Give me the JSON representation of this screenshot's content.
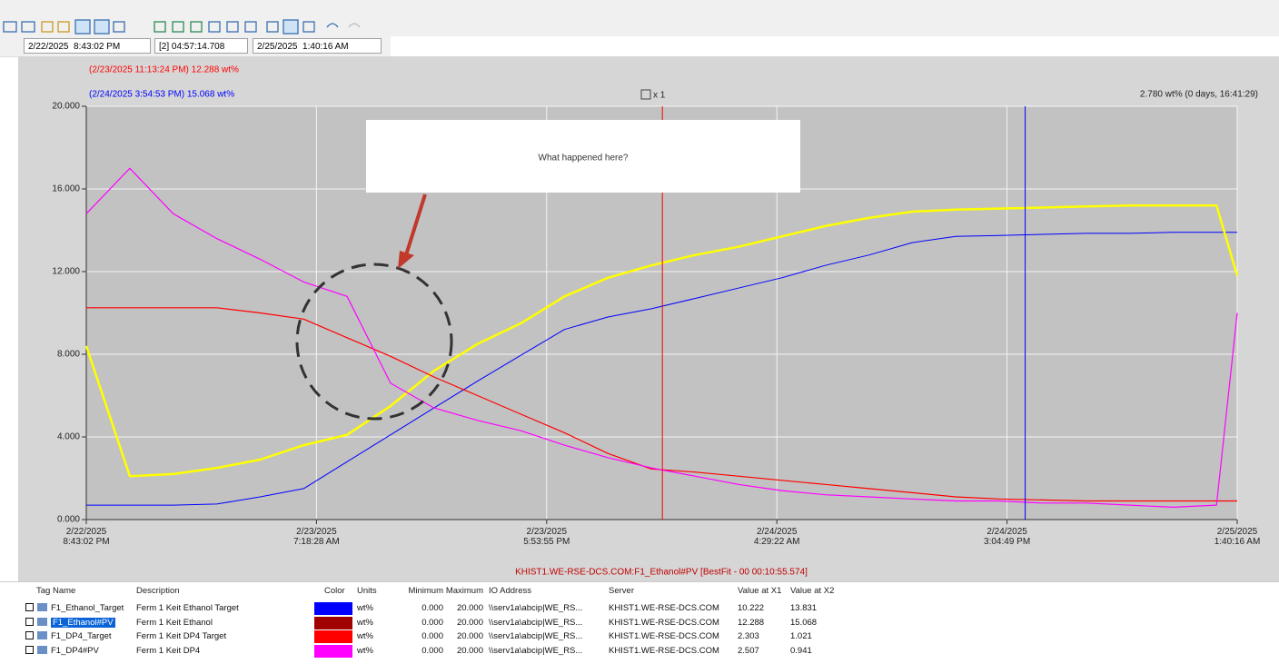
{
  "toolbar": {
    "start": "2/22/2025  8:43:02 PM",
    "span": "[2] 04:57:14.708",
    "end": "2/25/2025  1:40:16 AM"
  },
  "chart_data": {
    "type": "line",
    "cursors": [
      {
        "time": "2025-02-23T23:13:24",
        "label": "(2/23/2025 11:13:24 PM) 12.288 wt%",
        "color": "#ff0000"
      },
      {
        "time": "2025-02-24T15:54:53",
        "label": "(2/24/2025 3:54:53 PM) 15.068 wt%",
        "color": "#0000ff"
      }
    ],
    "cursor_delta": "2.780 wt% (0 days, 16:41:29)",
    "zoom_label": "x 1",
    "annotation": "What happened here?",
    "footer": "KHIST1.WE-RSE-DCS.COM:F1_Ethanol#PV [BestFit - 00 00:10:55.574]",
    "xlim": [
      "2025-02-22T20:43:02",
      "2025-02-25T01:40:16"
    ],
    "xticks": [
      {
        "value": "2025-02-22T20:43:02",
        "label": "2/22/2025 8:43:02 PM"
      },
      {
        "value": "2025-02-23T07:18:28",
        "label": "2/23/2025 7:18:28 AM"
      },
      {
        "value": "2025-02-23T17:53:55",
        "label": "2/23/2025 5:53:55 PM"
      },
      {
        "value": "2025-02-24T04:29:22",
        "label": "2/24/2025 4:29:22 AM"
      },
      {
        "value": "2025-02-24T15:04:49",
        "label": "2/24/2025 3:04:49 PM"
      },
      {
        "value": "2025-02-25T01:40:16",
        "label": "2/25/2025 1:40:16 AM"
      }
    ],
    "ylim": [
      0,
      20
    ],
    "yticks": [
      {
        "value": 0,
        "label": "0.000"
      },
      {
        "value": 4,
        "label": "4.000"
      },
      {
        "value": 8,
        "label": "8.000"
      },
      {
        "value": 12,
        "label": "12.000"
      },
      {
        "value": 16,
        "label": "16.000"
      },
      {
        "value": 20,
        "label": "20.000"
      }
    ],
    "grid": true,
    "x": [
      "2025-02-22T20:43:02",
      "2025-02-22T22:43:02",
      "2025-02-23T00:43:02",
      "2025-02-23T02:43:02",
      "2025-02-23T04:43:02",
      "2025-02-23T06:43:02",
      "2025-02-23T08:43:02",
      "2025-02-23T10:43:02",
      "2025-02-23T12:43:02",
      "2025-02-23T14:43:02",
      "2025-02-23T16:43:02",
      "2025-02-23T18:43:02",
      "2025-02-23T20:43:02",
      "2025-02-23T22:43:02",
      "2025-02-24T00:43:02",
      "2025-02-24T02:43:02",
      "2025-02-24T04:43:02",
      "2025-02-24T06:43:02",
      "2025-02-24T08:43:02",
      "2025-02-24T10:43:02",
      "2025-02-24T12:43:02",
      "2025-02-24T14:43:02",
      "2025-02-24T16:43:02",
      "2025-02-24T18:43:02",
      "2025-02-24T20:43:02",
      "2025-02-24T22:43:02",
      "2025-02-25T00:43:02",
      "2025-02-25T01:40:16"
    ],
    "series": [
      {
        "color": "#0000ff",
        "width": 1,
        "values": [
          0.7,
          0.7,
          0.7,
          0.75,
          1.1,
          1.5,
          2.8,
          4.1,
          5.4,
          6.7,
          7.95,
          9.2,
          9.8,
          10.2,
          10.7,
          11.2,
          11.7,
          12.3,
          12.8,
          13.4,
          13.7,
          13.75,
          13.8,
          13.85,
          13.85,
          13.9,
          13.9,
          13.9
        ]
      },
      {
        "color": "#ffff00",
        "width": 2.5,
        "values": [
          8.4,
          2.1,
          2.2,
          2.5,
          2.9,
          3.6,
          4.1,
          5.5,
          7.2,
          8.5,
          9.5,
          10.8,
          11.7,
          12.3,
          12.8,
          13.2,
          13.7,
          14.2,
          14.6,
          14.9,
          15.0,
          15.05,
          15.1,
          15.15,
          15.2,
          15.2,
          15.2,
          11.8
        ]
      },
      {
        "color": "#ff0000",
        "width": 1.2,
        "values": [
          10.25,
          10.25,
          10.25,
          10.25,
          10.0,
          9.7,
          8.8,
          7.9,
          6.9,
          6.0,
          5.1,
          4.2,
          3.2,
          2.45,
          2.3,
          2.1,
          1.9,
          1.7,
          1.5,
          1.3,
          1.1,
          1.0,
          0.95,
          0.9,
          0.9,
          0.9,
          0.9,
          0.9
        ]
      },
      {
        "color": "#ff00ff",
        "width": 1.2,
        "values": [
          14.8,
          17.0,
          14.8,
          13.6,
          12.6,
          11.5,
          10.8,
          6.6,
          5.4,
          4.8,
          4.3,
          3.6,
          3.0,
          2.5,
          2.1,
          1.7,
          1.4,
          1.2,
          1.1,
          1.0,
          0.9,
          0.9,
          0.8,
          0.8,
          0.7,
          0.6,
          0.7,
          10.0
        ]
      }
    ]
  },
  "table": {
    "columns": [
      "Tag Name",
      "Description",
      "Color",
      "Units",
      "Minimum",
      "Maximum",
      "IO Address",
      "Server",
      "Value at X1",
      "Value at X2"
    ],
    "selected_row": 1,
    "rows": [
      {
        "tag": "F1_Ethanol_Target",
        "description": "Ferm 1 Keit Ethanol Target",
        "color": "#0000ff",
        "units": "wt%",
        "minimum": "0.000",
        "maximum": "20.000",
        "io": "\\\\serv1a\\abcip|WE_RS...",
        "server": "KHIST1.WE-RSE-DCS.COM",
        "x1": "10.222",
        "x2": "13.831"
      },
      {
        "tag": "F1_Ethanol#PV",
        "description": "Ferm 1 Keit Ethanol",
        "color": "#a00000",
        "units": "wt%",
        "minimum": "0.000",
        "maximum": "20.000",
        "io": "\\\\serv1a\\abcip|WE_RS...",
        "server": "KHIST1.WE-RSE-DCS.COM",
        "x1": "12.288",
        "x2": "15.068"
      },
      {
        "tag": "F1_DP4_Target",
        "description": "Ferm 1 Keit DP4 Target",
        "color": "#ff0000",
        "units": "wt%",
        "minimum": "0.000",
        "maximum": "20.000",
        "io": "\\\\serv1a\\abcip|WE_RS...",
        "server": "KHIST1.WE-RSE-DCS.COM",
        "x1": "2.303",
        "x2": "1.021"
      },
      {
        "tag": "F1_DP4#PV",
        "description": "Ferm 1 Keit DP4",
        "color": "#ff00ff",
        "units": "wt%",
        "minimum": "0.000",
        "maximum": "20.000",
        "io": "\\\\serv1a\\abcip|WE_RS...",
        "server": "KHIST1.WE-RSE-DCS.COM",
        "x1": "2.507",
        "x2": "0.941"
      }
    ]
  }
}
